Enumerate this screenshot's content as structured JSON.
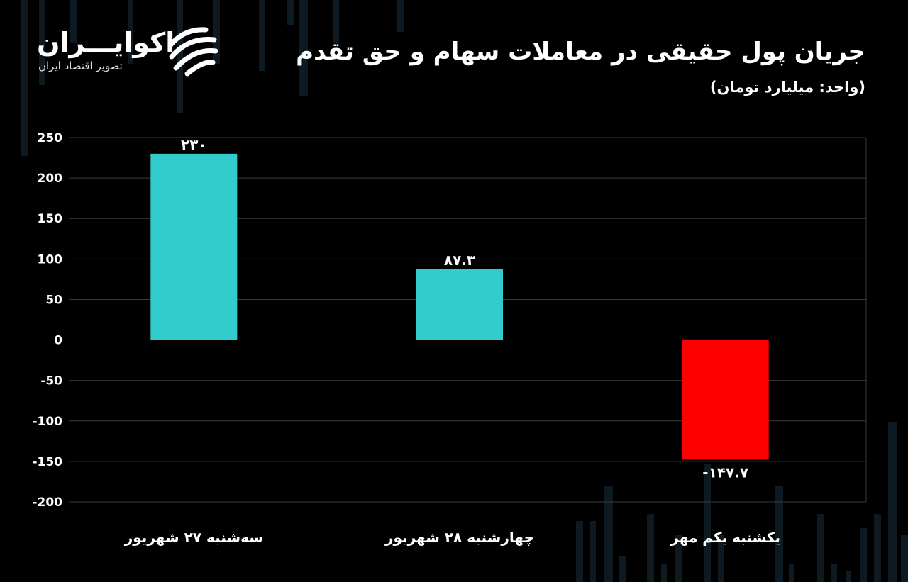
{
  "header": {
    "title": "جریان پول حقیقی در معاملات  سهام و حق تقدم",
    "subtitle": "(واحد: میلیارد تومان)"
  },
  "logo": {
    "name": "اکوایـــران",
    "tagline": "تصویر اقتصاد ایران"
  },
  "colors": {
    "positive": "#33CCCC",
    "negative": "#FF0000",
    "background": "#000000",
    "grid": "#3a3a3a"
  },
  "chart_data": {
    "type": "bar",
    "categories": [
      "سه‌شنبه ۲۷ شهریور",
      "چهارشنبه ۲۸ شهریور",
      "یکشنبه یکم مهر"
    ],
    "values": [
      230,
      87.3,
      -147.7
    ],
    "data_labels": [
      "۲۳۰",
      "۸۷.۳",
      "-۱۴۷.۷"
    ],
    "yticks": [
      "250",
      "200",
      "150",
      "100",
      "50",
      "0",
      "-50",
      "-100",
      "-150",
      "-200"
    ],
    "ylim": [
      -200,
      250
    ],
    "grid": true,
    "legend": "none"
  }
}
